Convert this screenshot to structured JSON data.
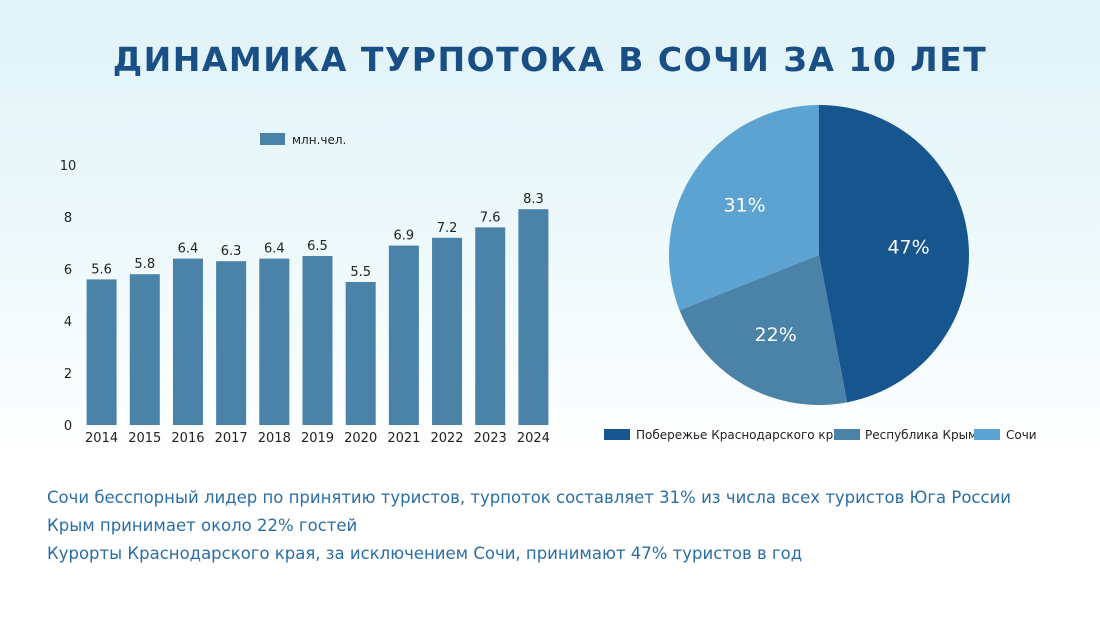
{
  "title": "ДИНАМИКА ТУРПОТОКА В СОЧИ ЗА 10 ЛЕТ",
  "colors": {
    "title": "#1a4f86",
    "bar": "#4a82a8",
    "pie_dark": "#17558e",
    "pie_mid": "#4a82a8",
    "pie_light": "#5ca3d1",
    "notes": "#2a6ea8"
  },
  "chart_data": [
    {
      "type": "bar",
      "legend": "млн.чел.",
      "legend_position": "top",
      "categories": [
        "2014",
        "2015",
        "2016",
        "2017",
        "2018",
        "2019",
        "2020",
        "2021",
        "2022",
        "2023",
        "2024"
      ],
      "values": [
        5.6,
        5.8,
        6.4,
        6.3,
        6.4,
        6.5,
        5.5,
        6.9,
        7.2,
        7.6,
        8.3
      ],
      "ylim": [
        0,
        10
      ],
      "yticks": [
        0,
        2,
        4,
        6,
        8,
        10
      ],
      "grid": false
    },
    {
      "type": "pie",
      "legend_position": "bottom",
      "slices": [
        {
          "label": "Побережье Краснодарского края",
          "value": 47,
          "text": "47%",
          "color": "#17558e"
        },
        {
          "label": "Республика Крым",
          "value": 22,
          "text": "22%",
          "color": "#4a82a8"
        },
        {
          "label": "Сочи",
          "value": 31,
          "text": "31%",
          "color": "#5ca3d1"
        }
      ]
    }
  ],
  "notes": [
    "Сочи бесспорный лидер по принятию туристов, турпоток составляет 31% из числа всех туристов Юга России",
    "Крым принимает около 22% гостей",
    "Курорты Краснодарского края, за исключением Сочи, принимают 47% туристов в год"
  ]
}
